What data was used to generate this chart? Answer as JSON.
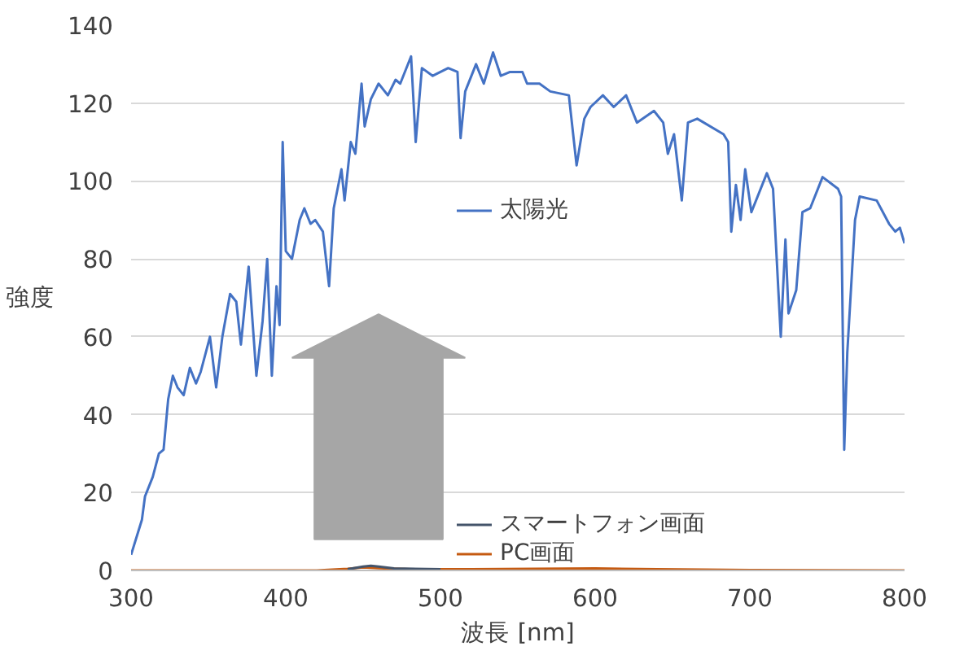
{
  "chart_data": {
    "type": "line",
    "xlabel": "波長 [nm]",
    "ylabel": "強度",
    "xlim": [
      300,
      800
    ],
    "ylim": [
      0,
      140
    ],
    "xticks": [
      300,
      400,
      500,
      600,
      700,
      800
    ],
    "yticks": [
      0,
      20,
      40,
      60,
      80,
      100,
      120,
      140
    ],
    "grid": "y",
    "legend": "bottom",
    "marker": "none",
    "line_style": "solid",
    "series": [
      {
        "name": "太陽光",
        "color": "#4472c4",
        "x": [
          300,
          307,
          309,
          314,
          318,
          321,
          324,
          327,
          330,
          334,
          338,
          342,
          345,
          351,
          355,
          359,
          364,
          368,
          371,
          376,
          381,
          385,
          388,
          391,
          394,
          396,
          398,
          400,
          404,
          409,
          412,
          416,
          419,
          424,
          428,
          431,
          436,
          438,
          442,
          445,
          449,
          451,
          455,
          460,
          466,
          471,
          474,
          481,
          484,
          488,
          495,
          505,
          511,
          513,
          516,
          523,
          528,
          534,
          539,
          545,
          553,
          556,
          564,
          571,
          583,
          588,
          593,
          597,
          605,
          612,
          620,
          627,
          638,
          644,
          647,
          651,
          656,
          660,
          666,
          683,
          686,
          688,
          691,
          694,
          697,
          701,
          711,
          715,
          720,
          723,
          725,
          730,
          734,
          739,
          747,
          757,
          759,
          761,
          763,
          768,
          771,
          782,
          790,
          794,
          797,
          800
        ],
        "values": [
          4,
          13,
          19,
          24,
          30,
          31,
          44,
          50,
          47,
          45,
          52,
          48,
          51,
          60,
          47,
          60,
          71,
          69,
          58,
          78,
          50,
          64,
          80,
          50,
          73,
          63,
          110,
          82,
          80,
          90,
          93,
          89,
          90,
          87,
          73,
          93,
          103,
          95,
          110,
          107,
          125,
          114,
          121,
          125,
          122,
          126,
          125,
          132,
          110,
          129,
          127,
          129,
          128,
          111,
          123,
          130,
          125,
          133,
          127,
          128,
          128,
          125,
          125,
          123,
          122,
          104,
          116,
          119,
          122,
          119,
          122,
          115,
          118,
          115,
          107,
          112,
          95,
          115,
          116,
          112,
          110,
          87,
          99,
          90,
          103,
          92,
          102,
          98,
          60,
          85,
          66,
          72,
          92,
          93,
          101,
          98,
          96,
          31,
          56,
          90,
          96,
          95,
          89,
          87,
          88,
          84
        ]
      },
      {
        "name": "スマートフォン画面",
        "color": "#44546a",
        "x": [
          440,
          450,
          455,
          460,
          470,
          500
        ],
        "values": [
          0.3,
          1,
          1.2,
          1,
          0.5,
          0.3
        ]
      },
      {
        "name": "PC画面",
        "color": "#c55a11",
        "x": [
          300,
          420,
          440,
          450,
          460,
          480,
          520,
          560,
          600,
          640,
          700,
          800
        ],
        "values": [
          0,
          0,
          0.4,
          0.8,
          0.6,
          0.3,
          0.3,
          0.4,
          0.5,
          0.3,
          0.1,
          0
        ]
      }
    ]
  }
}
